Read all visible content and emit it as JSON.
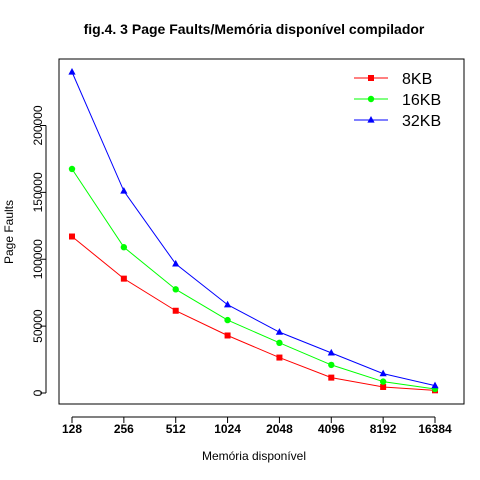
{
  "chart_data": {
    "type": "line",
    "title": "fig.4. 3 Page Faults/Memória disponível  compilador",
    "xlabel": "Memória disponível",
    "ylabel": "Page Faults",
    "categories": [
      "128",
      "256",
      "512",
      "1024",
      "2048",
      "4096",
      "8192",
      "16384"
    ],
    "yticks": [
      0,
      50000,
      100000,
      150000,
      200000
    ],
    "ylim": [
      0,
      240000
    ],
    "grid": false,
    "legend_position": "top-right",
    "series": [
      {
        "name": "8KB",
        "color": "#ff0000",
        "marker": "square",
        "values": [
          117000,
          85500,
          61500,
          43000,
          26500,
          11500,
          4500,
          2000
        ]
      },
      {
        "name": "16KB",
        "color": "#00ff00",
        "marker": "circle",
        "values": [
          167500,
          109000,
          77500,
          54500,
          37500,
          21000,
          8500,
          3000
        ]
      },
      {
        "name": "32KB",
        "color": "#0000ff",
        "marker": "triangle",
        "values": [
          240000,
          151000,
          96500,
          66000,
          45500,
          30000,
          14500,
          5500
        ]
      }
    ]
  }
}
